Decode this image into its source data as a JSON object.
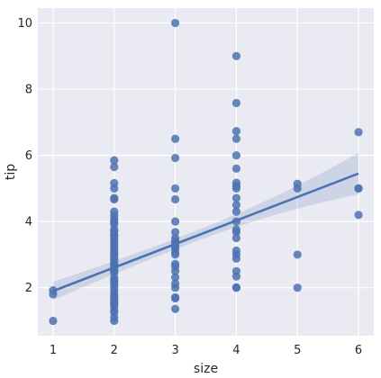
{
  "chart_data": {
    "type": "scatter",
    "title": "",
    "xlabel": "size",
    "ylabel": "tip",
    "xlim": [
      0.75,
      6.25
    ],
    "ylim": [
      0.55,
      10.45
    ],
    "xticks": [
      1,
      2,
      3,
      4,
      5,
      6
    ],
    "yticks": [
      2,
      4,
      6,
      8,
      10
    ],
    "grid": true,
    "colors": {
      "background": "#eaeaf2",
      "grid": "#ffffff",
      "points": "#4c72b0",
      "line": "#4c72b0",
      "band": "#4c72b0"
    },
    "series": [
      {
        "points": [
          [
            1,
            1.0
          ],
          [
            1,
            1.8
          ],
          [
            1,
            1.92
          ],
          [
            2,
            1.0
          ],
          [
            2,
            1.1
          ],
          [
            2,
            1.25
          ],
          [
            2,
            1.32
          ],
          [
            2,
            1.44
          ],
          [
            2,
            1.5
          ],
          [
            2,
            1.56
          ],
          [
            2,
            1.64
          ],
          [
            2,
            1.7
          ],
          [
            2,
            1.76
          ],
          [
            2,
            1.8
          ],
          [
            2,
            1.9
          ],
          [
            2,
            2.0
          ],
          [
            2,
            2.1
          ],
          [
            2,
            2.18
          ],
          [
            2,
            2.23
          ],
          [
            2,
            2.3
          ],
          [
            2,
            2.45
          ],
          [
            2,
            2.5
          ],
          [
            2,
            2.55
          ],
          [
            2,
            2.64
          ],
          [
            2,
            2.7
          ],
          [
            2,
            2.75
          ],
          [
            2,
            2.83
          ],
          [
            2,
            2.9
          ],
          [
            2,
            3.0
          ],
          [
            2,
            3.06
          ],
          [
            2,
            3.15
          ],
          [
            2,
            3.23
          ],
          [
            2,
            3.3
          ],
          [
            2,
            3.39
          ],
          [
            2,
            3.48
          ],
          [
            2,
            3.55
          ],
          [
            2,
            3.6
          ],
          [
            2,
            3.71
          ],
          [
            2,
            3.76
          ],
          [
            2,
            3.92
          ],
          [
            2,
            4.0
          ],
          [
            2,
            4.08
          ],
          [
            2,
            4.19
          ],
          [
            2,
            4.3
          ],
          [
            2,
            4.67
          ],
          [
            2,
            4.71
          ],
          [
            2,
            5.0
          ],
          [
            2,
            5.16
          ],
          [
            2,
            5.65
          ],
          [
            2,
            5.85
          ],
          [
            3,
            1.36
          ],
          [
            3,
            1.68
          ],
          [
            3,
            1.71
          ],
          [
            3,
            2.0
          ],
          [
            3,
            2.12
          ],
          [
            3,
            2.31
          ],
          [
            3,
            2.5
          ],
          [
            3,
            2.64
          ],
          [
            3,
            2.72
          ],
          [
            3,
            3.0
          ],
          [
            3,
            3.07
          ],
          [
            3,
            3.18
          ],
          [
            3,
            3.25
          ],
          [
            3,
            3.35
          ],
          [
            3,
            3.41
          ],
          [
            3,
            3.5
          ],
          [
            3,
            3.68
          ],
          [
            3,
            4.0
          ],
          [
            3,
            4.67
          ],
          [
            3,
            5.0
          ],
          [
            3,
            5.92
          ],
          [
            3,
            6.5
          ],
          [
            3,
            10.0
          ],
          [
            4,
            2.0
          ],
          [
            4,
            2.01
          ],
          [
            4,
            2.34
          ],
          [
            4,
            2.5
          ],
          [
            4,
            2.88
          ],
          [
            4,
            3.0
          ],
          [
            4,
            3.12
          ],
          [
            4,
            3.5
          ],
          [
            4,
            3.68
          ],
          [
            4,
            3.76
          ],
          [
            4,
            4.0
          ],
          [
            4,
            4.3
          ],
          [
            4,
            4.5
          ],
          [
            4,
            4.71
          ],
          [
            4,
            5.0
          ],
          [
            4,
            5.07
          ],
          [
            4,
            5.17
          ],
          [
            4,
            5.6
          ],
          [
            4,
            6.0
          ],
          [
            4,
            6.5
          ],
          [
            4,
            6.73
          ],
          [
            4,
            7.58
          ],
          [
            4,
            9.0
          ],
          [
            5,
            2.0
          ],
          [
            5,
            3.0
          ],
          [
            5,
            5.0
          ],
          [
            5,
            5.14
          ],
          [
            6,
            4.2
          ],
          [
            6,
            5.0
          ],
          [
            6,
            5.0
          ],
          [
            6,
            6.7
          ]
        ]
      }
    ],
    "regression": {
      "x": [
        1,
        6
      ],
      "y": [
        1.9,
        5.45
      ],
      "ci_lower": [
        1.62,
        4.85
      ],
      "ci_upper": [
        2.18,
        6.08
      ]
    }
  }
}
